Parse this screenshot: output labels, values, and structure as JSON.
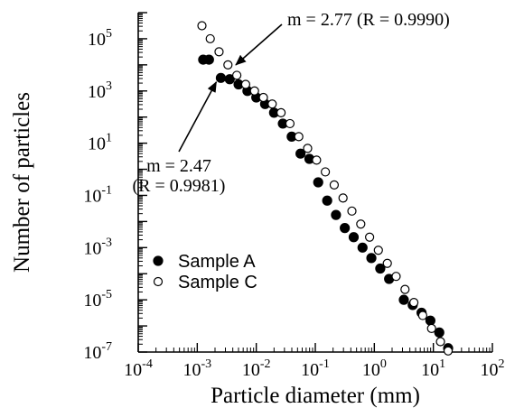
{
  "chart_data": {
    "type": "scatter",
    "xlabel": "Particle diameter (mm)",
    "ylabel": "Number of particles",
    "x_scale": "log",
    "y_scale": "log",
    "xlim": [
      0.0001,
      100
    ],
    "ylim": [
      1e-07,
      1000000
    ],
    "x_ticks": [
      {
        "base": "10",
        "exp": "-4",
        "value": 0.0001
      },
      {
        "base": "10",
        "exp": "-3",
        "value": 0.001
      },
      {
        "base": "10",
        "exp": "-2",
        "value": 0.01
      },
      {
        "base": "10",
        "exp": "-1",
        "value": 0.1
      },
      {
        "base": "10",
        "exp": "0",
        "value": 1
      },
      {
        "base": "10",
        "exp": "1",
        "value": 10
      },
      {
        "base": "10",
        "exp": "2",
        "value": 100
      }
    ],
    "y_ticks": [
      {
        "base": "10",
        "exp": "5",
        "value": 100000
      },
      {
        "base": "10",
        "exp": "3",
        "value": 1000
      },
      {
        "base": "10",
        "exp": "1",
        "value": 10
      },
      {
        "base": "10",
        "exp": "-1",
        "value": 0.1
      },
      {
        "base": "10",
        "exp": "-3",
        "value": 0.001
      },
      {
        "base": "10",
        "exp": "-5",
        "value": 1e-05
      },
      {
        "base": "10",
        "exp": "-7",
        "value": 1e-07
      }
    ],
    "grid": false,
    "legend_position": "bottom-left",
    "series": [
      {
        "name": "Sample A",
        "marker": "filled-circle",
        "color": "#000000",
        "points": [
          [
            0.00126,
            15800
          ],
          [
            0.00158,
            15800
          ],
          [
            0.00251,
            3160
          ],
          [
            0.00355,
            2820
          ],
          [
            0.00501,
            1780
          ],
          [
            0.00708,
            1000
          ],
          [
            0.01,
            562
          ],
          [
            0.0141,
            316
          ],
          [
            0.02,
            147
          ],
          [
            0.0282,
            56.2
          ],
          [
            0.0398,
            17.8
          ],
          [
            0.0562,
            3.98
          ],
          [
            0.0794,
            2.51
          ],
          [
            0.112,
            0.316
          ],
          [
            0.159,
            0.0631
          ],
          [
            0.224,
            0.0178
          ],
          [
            0.316,
            0.00562
          ],
          [
            0.447,
            0.00251
          ],
          [
            0.631,
            0.001
          ],
          [
            0.891,
            0.000398
          ],
          [
            1.26,
            0.000158
          ],
          [
            1.78,
            6.31e-05
          ],
          [
            3.16,
            1e-05
          ],
          [
            4.47,
            6.3e-06
          ],
          [
            6.31,
            3.2e-06
          ],
          [
            8.91,
            1.6e-06
          ],
          [
            12.6,
            5.6e-07
          ],
          [
            17.8,
            1.4e-07
          ]
        ]
      },
      {
        "name": "Sample C",
        "marker": "open-circle",
        "color": "#000000",
        "points": [
          [
            0.0012,
            316000
          ],
          [
            0.00166,
            100000
          ],
          [
            0.00234,
            31600
          ],
          [
            0.00331,
            10000
          ],
          [
            0.00468,
            3980
          ],
          [
            0.00661,
            1780
          ],
          [
            0.00933,
            1000
          ],
          [
            0.0132,
            562
          ],
          [
            0.0186,
            316
          ],
          [
            0.0263,
            147
          ],
          [
            0.0372,
            56.2
          ],
          [
            0.0525,
            17.8
          ],
          [
            0.0741,
            6.31
          ],
          [
            0.105,
            2.24
          ],
          [
            0.148,
            0.794
          ],
          [
            0.209,
            0.251
          ],
          [
            0.295,
            0.0794
          ],
          [
            0.417,
            0.0251
          ],
          [
            0.589,
            0.00794
          ],
          [
            0.832,
            0.00251
          ],
          [
            1.17,
            0.00079
          ],
          [
            1.66,
            0.00025
          ],
          [
            2.34,
            7.9e-05
          ],
          [
            3.31,
            2.5e-05
          ],
          [
            4.68,
            7.9e-06
          ],
          [
            6.61,
            2.5e-06
          ],
          [
            9.33,
            8e-07
          ],
          [
            13.2,
            2.5e-07
          ],
          [
            17.8,
            1.1e-07
          ]
        ]
      }
    ],
    "annotations": [
      {
        "id": "c",
        "lines": [
          "m = 2.77 (R = 0.9990)"
        ],
        "points_to": [
          0.0045,
          10000
        ]
      },
      {
        "id": "a",
        "lines": [
          "m = 2.47",
          "(R = 0.9981)"
        ],
        "points_to": [
          0.0021,
          2200
        ]
      }
    ]
  }
}
